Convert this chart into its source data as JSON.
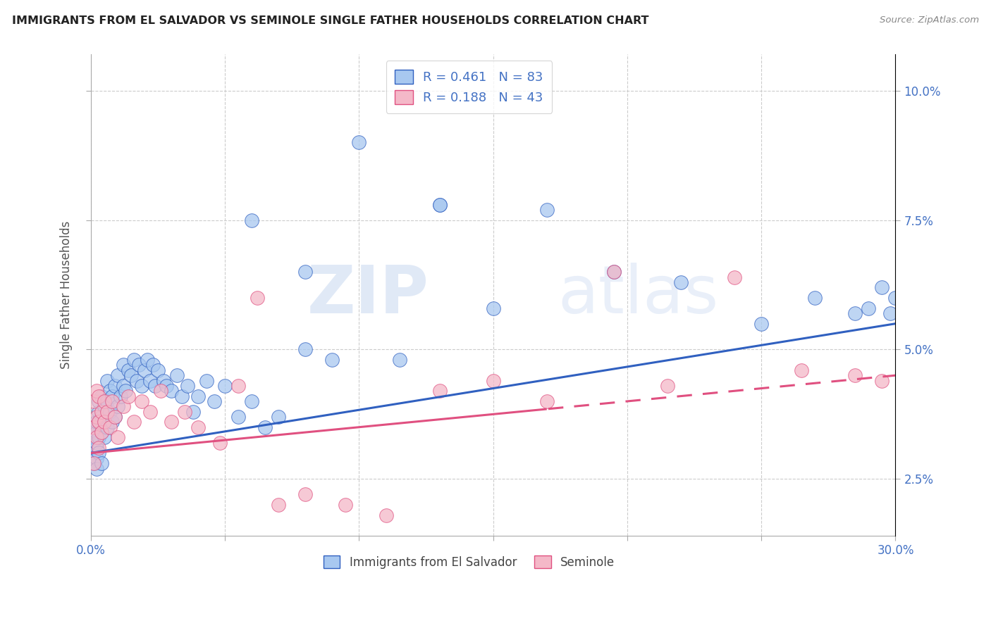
{
  "title": "IMMIGRANTS FROM EL SALVADOR VS SEMINOLE SINGLE FATHER HOUSEHOLDS CORRELATION CHART",
  "source": "Source: ZipAtlas.com",
  "ylabel": "Single Father Households",
  "x_min": 0.0,
  "x_max": 0.3,
  "y_min": 0.014,
  "y_max": 0.107,
  "blue_color": "#A8C8F0",
  "pink_color": "#F4B8C8",
  "blue_line_color": "#3060C0",
  "pink_line_color": "#E05080",
  "legend_label_blue": "Immigrants from El Salvador",
  "legend_label_pink": "Seminole",
  "watermark_zip": "ZIP",
  "watermark_atlas": "atlas",
  "blue_x": [
    0.001,
    0.001,
    0.001,
    0.001,
    0.002,
    0.002,
    0.002,
    0.002,
    0.002,
    0.002,
    0.003,
    0.003,
    0.003,
    0.003,
    0.003,
    0.004,
    0.004,
    0.004,
    0.004,
    0.005,
    0.005,
    0.005,
    0.006,
    0.006,
    0.006,
    0.007,
    0.007,
    0.008,
    0.008,
    0.009,
    0.009,
    0.01,
    0.01,
    0.011,
    0.012,
    0.012,
    0.013,
    0.014,
    0.015,
    0.016,
    0.017,
    0.018,
    0.019,
    0.02,
    0.021,
    0.022,
    0.023,
    0.024,
    0.025,
    0.027,
    0.028,
    0.03,
    0.032,
    0.034,
    0.036,
    0.038,
    0.04,
    0.043,
    0.046,
    0.05,
    0.055,
    0.06,
    0.065,
    0.07,
    0.08,
    0.09,
    0.1,
    0.115,
    0.13,
    0.15,
    0.17,
    0.195,
    0.22,
    0.25,
    0.27,
    0.285,
    0.29,
    0.295,
    0.298,
    0.3,
    0.06,
    0.08,
    0.13
  ],
  "blue_y": [
    0.03,
    0.033,
    0.035,
    0.028,
    0.031,
    0.034,
    0.036,
    0.029,
    0.032,
    0.027,
    0.033,
    0.036,
    0.03,
    0.038,
    0.04,
    0.034,
    0.037,
    0.041,
    0.028,
    0.036,
    0.039,
    0.033,
    0.035,
    0.04,
    0.044,
    0.038,
    0.042,
    0.036,
    0.041,
    0.037,
    0.043,
    0.039,
    0.045,
    0.041,
    0.043,
    0.047,
    0.042,
    0.046,
    0.045,
    0.048,
    0.044,
    0.047,
    0.043,
    0.046,
    0.048,
    0.044,
    0.047,
    0.043,
    0.046,
    0.044,
    0.043,
    0.042,
    0.045,
    0.041,
    0.043,
    0.038,
    0.041,
    0.044,
    0.04,
    0.043,
    0.037,
    0.04,
    0.035,
    0.037,
    0.05,
    0.048,
    0.09,
    0.048,
    0.078,
    0.058,
    0.077,
    0.065,
    0.063,
    0.055,
    0.06,
    0.057,
    0.058,
    0.062,
    0.057,
    0.06,
    0.075,
    0.065,
    0.078
  ],
  "pink_x": [
    0.001,
    0.001,
    0.001,
    0.002,
    0.002,
    0.002,
    0.003,
    0.003,
    0.003,
    0.004,
    0.004,
    0.005,
    0.005,
    0.006,
    0.007,
    0.008,
    0.009,
    0.01,
    0.012,
    0.014,
    0.016,
    0.019,
    0.022,
    0.026,
    0.03,
    0.035,
    0.04,
    0.048,
    0.055,
    0.062,
    0.07,
    0.08,
    0.095,
    0.11,
    0.13,
    0.15,
    0.17,
    0.195,
    0.215,
    0.24,
    0.265,
    0.285,
    0.295
  ],
  "pink_y": [
    0.035,
    0.04,
    0.028,
    0.033,
    0.037,
    0.042,
    0.031,
    0.036,
    0.041,
    0.034,
    0.038,
    0.036,
    0.04,
    0.038,
    0.035,
    0.04,
    0.037,
    0.033,
    0.039,
    0.041,
    0.036,
    0.04,
    0.038,
    0.042,
    0.036,
    0.038,
    0.035,
    0.032,
    0.043,
    0.06,
    0.02,
    0.022,
    0.02,
    0.018,
    0.042,
    0.044,
    0.04,
    0.065,
    0.043,
    0.064,
    0.046,
    0.045,
    0.044
  ]
}
